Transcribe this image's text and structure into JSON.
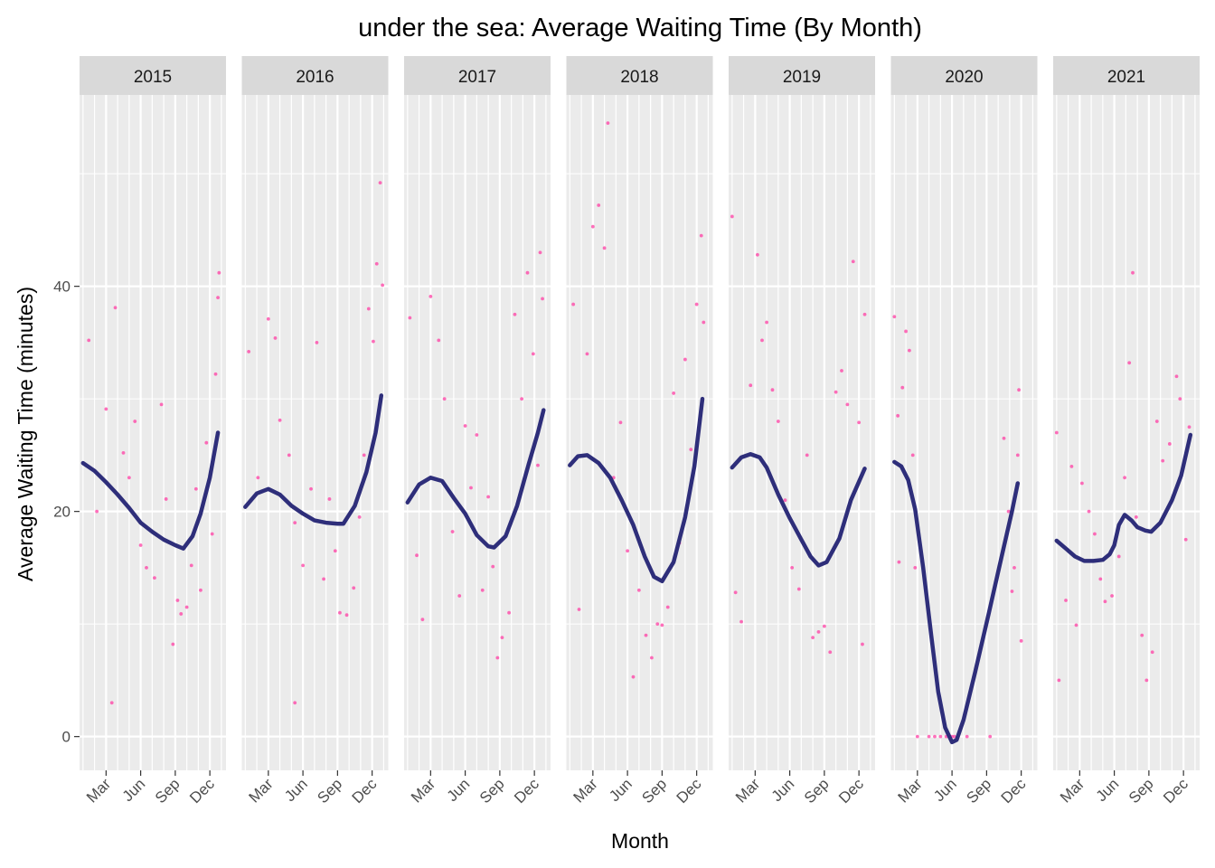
{
  "chart_data": {
    "type": "scatter",
    "title": "under the sea: Average Waiting Time (By Month)",
    "xlabel": "Month",
    "ylabel": "Average Waiting Time (minutes)",
    "ylim": [
      -3,
      57
    ],
    "y_ticks": [
      0,
      20,
      40
    ],
    "x_tick_labels": [
      "Mar",
      "Jun",
      "Sep",
      "Dec"
    ],
    "x_ticks_months": [
      3,
      6,
      9,
      12
    ],
    "xlim_months": [
      0.7,
      13.4
    ],
    "grid": true,
    "facet_by": "year",
    "colors": {
      "points": "#ff3fa4",
      "smooth": "#2e2e7a",
      "panel": "#ebebeb",
      "strip": "#d9d9d9",
      "grid": "#ffffff"
    },
    "panels": [
      {
        "year": "2015",
        "smooth": [
          [
            1.0,
            24.3
          ],
          [
            2.0,
            23.6
          ],
          [
            3.0,
            22.6
          ],
          [
            4.0,
            21.5
          ],
          [
            5.0,
            20.3
          ],
          [
            6.0,
            19.0
          ],
          [
            7.0,
            18.2
          ],
          [
            8.0,
            17.5
          ],
          [
            9.0,
            17.0
          ],
          [
            9.7,
            16.7
          ],
          [
            10.5,
            17.8
          ],
          [
            11.2,
            19.8
          ],
          [
            12.0,
            23.0
          ],
          [
            12.7,
            27.0
          ]
        ],
        "points": [
          [
            1.5,
            35.2
          ],
          [
            2.2,
            20.0
          ],
          [
            3.0,
            29.1
          ],
          [
            3.8,
            38.1
          ],
          [
            4.5,
            25.2
          ],
          [
            5.0,
            23.0
          ],
          [
            5.5,
            28.0
          ],
          [
            6.0,
            17.0
          ],
          [
            6.5,
            15.0
          ],
          [
            7.2,
            14.1
          ],
          [
            7.8,
            29.5
          ],
          [
            8.2,
            21.1
          ],
          [
            8.8,
            8.2
          ],
          [
            9.2,
            12.1
          ],
          [
            9.5,
            10.9
          ],
          [
            10.0,
            11.5
          ],
          [
            10.4,
            15.2
          ],
          [
            10.8,
            22.0
          ],
          [
            11.2,
            13.0
          ],
          [
            11.7,
            26.1
          ],
          [
            12.2,
            18.0
          ],
          [
            12.5,
            32.2
          ],
          [
            12.7,
            39.0
          ],
          [
            12.8,
            41.2
          ],
          [
            3.5,
            3.0
          ]
        ]
      },
      {
        "year": "2016",
        "smooth": [
          [
            1.0,
            20.4
          ],
          [
            2.0,
            21.6
          ],
          [
            3.0,
            22.0
          ],
          [
            4.0,
            21.5
          ],
          [
            5.0,
            20.5
          ],
          [
            6.0,
            19.8
          ],
          [
            7.0,
            19.2
          ],
          [
            8.0,
            19.0
          ],
          [
            9.0,
            18.9
          ],
          [
            9.5,
            18.9
          ],
          [
            10.5,
            20.5
          ],
          [
            11.5,
            23.5
          ],
          [
            12.3,
            27.0
          ],
          [
            12.8,
            30.3
          ]
        ],
        "points": [
          [
            1.3,
            34.2
          ],
          [
            2.1,
            23.0
          ],
          [
            3.0,
            37.1
          ],
          [
            3.6,
            35.4
          ],
          [
            4.0,
            28.1
          ],
          [
            4.8,
            25.0
          ],
          [
            5.3,
            19.0
          ],
          [
            6.0,
            15.2
          ],
          [
            6.7,
            22.0
          ],
          [
            7.2,
            35.0
          ],
          [
            7.8,
            14.0
          ],
          [
            8.3,
            21.1
          ],
          [
            8.8,
            16.5
          ],
          [
            9.2,
            11.0
          ],
          [
            9.8,
            10.8
          ],
          [
            10.4,
            13.2
          ],
          [
            10.9,
            19.5
          ],
          [
            11.3,
            25.0
          ],
          [
            11.7,
            38.0
          ],
          [
            12.1,
            35.1
          ],
          [
            12.4,
            42.0
          ],
          [
            12.7,
            49.2
          ],
          [
            12.9,
            40.1
          ],
          [
            5.3,
            3.0
          ]
        ]
      },
      {
        "year": "2017",
        "smooth": [
          [
            1.0,
            20.8
          ],
          [
            2.0,
            22.4
          ],
          [
            3.0,
            23.0
          ],
          [
            4.0,
            22.7
          ],
          [
            5.0,
            21.2
          ],
          [
            6.0,
            19.8
          ],
          [
            7.0,
            17.9
          ],
          [
            8.0,
            16.9
          ],
          [
            8.5,
            16.8
          ],
          [
            9.5,
            17.8
          ],
          [
            10.5,
            20.5
          ],
          [
            11.5,
            24.2
          ],
          [
            12.3,
            27.0
          ],
          [
            12.8,
            29.0
          ]
        ],
        "points": [
          [
            1.2,
            37.2
          ],
          [
            1.8,
            16.1
          ],
          [
            2.3,
            10.4
          ],
          [
            3.0,
            39.1
          ],
          [
            3.7,
            35.2
          ],
          [
            4.2,
            30.0
          ],
          [
            4.9,
            18.2
          ],
          [
            5.5,
            12.5
          ],
          [
            6.0,
            27.6
          ],
          [
            6.5,
            22.1
          ],
          [
            7.0,
            26.8
          ],
          [
            7.5,
            13.0
          ],
          [
            8.0,
            21.3
          ],
          [
            8.4,
            15.1
          ],
          [
            8.8,
            7.0
          ],
          [
            9.2,
            8.8
          ],
          [
            9.8,
            11.0
          ],
          [
            10.3,
            37.5
          ],
          [
            10.9,
            30.0
          ],
          [
            11.4,
            41.2
          ],
          [
            11.9,
            34.0
          ],
          [
            12.3,
            24.1
          ],
          [
            12.5,
            43.0
          ],
          [
            12.7,
            38.9
          ]
        ]
      },
      {
        "year": "2018",
        "smooth": [
          [
            1.0,
            24.1
          ],
          [
            1.7,
            24.9
          ],
          [
            2.5,
            25.0
          ],
          [
            3.5,
            24.3
          ],
          [
            4.5,
            23.0
          ],
          [
            5.5,
            21.0
          ],
          [
            6.5,
            18.8
          ],
          [
            7.5,
            16.0
          ],
          [
            8.3,
            14.2
          ],
          [
            9.0,
            13.8
          ],
          [
            10.0,
            15.5
          ],
          [
            11.0,
            19.5
          ],
          [
            11.8,
            24.0
          ],
          [
            12.5,
            30.0
          ]
        ],
        "points": [
          [
            1.3,
            38.4
          ],
          [
            1.8,
            11.3
          ],
          [
            2.5,
            34.0
          ],
          [
            3.0,
            45.3
          ],
          [
            3.5,
            47.2
          ],
          [
            4.0,
            43.4
          ],
          [
            4.3,
            54.5
          ],
          [
            4.8,
            23.0
          ],
          [
            5.4,
            27.9
          ],
          [
            6.0,
            16.5
          ],
          [
            6.5,
            5.3
          ],
          [
            7.0,
            13.0
          ],
          [
            7.6,
            9.0
          ],
          [
            8.1,
            7.0
          ],
          [
            8.6,
            10.0
          ],
          [
            9.0,
            9.9
          ],
          [
            9.5,
            11.5
          ],
          [
            10.0,
            30.5
          ],
          [
            10.5,
            17.2
          ],
          [
            11.0,
            33.5
          ],
          [
            11.5,
            25.5
          ],
          [
            12.0,
            38.4
          ],
          [
            12.4,
            44.5
          ],
          [
            12.6,
            36.8
          ]
        ]
      },
      {
        "year": "2019",
        "smooth": [
          [
            1.0,
            23.9
          ],
          [
            1.8,
            24.8
          ],
          [
            2.6,
            25.1
          ],
          [
            3.4,
            24.8
          ],
          [
            4.0,
            23.9
          ],
          [
            5.0,
            21.5
          ],
          [
            6.0,
            19.4
          ],
          [
            7.0,
            17.5
          ],
          [
            7.8,
            16.0
          ],
          [
            8.5,
            15.2
          ],
          [
            9.2,
            15.5
          ],
          [
            10.3,
            17.6
          ],
          [
            11.3,
            21.0
          ],
          [
            12.5,
            23.8
          ]
        ],
        "points": [
          [
            1.0,
            46.2
          ],
          [
            1.3,
            12.8
          ],
          [
            1.8,
            10.2
          ],
          [
            2.6,
            31.2
          ],
          [
            3.2,
            42.8
          ],
          [
            3.6,
            35.2
          ],
          [
            4.0,
            36.8
          ],
          [
            4.5,
            30.8
          ],
          [
            5.0,
            28.0
          ],
          [
            5.6,
            21.0
          ],
          [
            6.2,
            15.0
          ],
          [
            6.8,
            13.1
          ],
          [
            7.5,
            25.0
          ],
          [
            8.0,
            8.8
          ],
          [
            8.5,
            9.3
          ],
          [
            9.0,
            9.8
          ],
          [
            9.5,
            7.5
          ],
          [
            10.0,
            30.6
          ],
          [
            10.5,
            32.5
          ],
          [
            11.0,
            29.5
          ],
          [
            11.5,
            42.2
          ],
          [
            12.0,
            27.9
          ],
          [
            12.5,
            37.5
          ],
          [
            12.3,
            8.2
          ]
        ]
      },
      {
        "year": "2020",
        "smooth": [
          [
            1.0,
            24.4
          ],
          [
            1.6,
            24.0
          ],
          [
            2.2,
            22.8
          ],
          [
            2.8,
            20.2
          ],
          [
            3.5,
            15.0
          ],
          [
            4.2,
            9.0
          ],
          [
            4.8,
            4.0
          ],
          [
            5.4,
            0.8
          ],
          [
            6.0,
            -0.5
          ],
          [
            6.4,
            -0.3
          ],
          [
            7.0,
            1.5
          ],
          [
            8.0,
            5.7
          ],
          [
            9.2,
            11.0
          ],
          [
            10.3,
            16.0
          ],
          [
            11.2,
            20.0
          ],
          [
            11.7,
            22.5
          ]
        ],
        "points": [
          [
            1.0,
            37.3
          ],
          [
            1.3,
            28.5
          ],
          [
            1.7,
            31.0
          ],
          [
            2.0,
            36.0
          ],
          [
            2.3,
            34.3
          ],
          [
            2.6,
            25.0
          ],
          [
            2.8,
            15.0
          ],
          [
            1.4,
            15.5
          ],
          [
            3.0,
            0.0
          ],
          [
            4.0,
            0.0
          ],
          [
            4.5,
            0.0
          ],
          [
            5.0,
            0.0
          ],
          [
            5.5,
            0.0
          ],
          [
            6.0,
            0.0
          ],
          [
            6.2,
            0.0
          ],
          [
            6.5,
            0.0
          ],
          [
            7.3,
            0.0
          ],
          [
            9.3,
            0.0
          ],
          [
            10.5,
            26.5
          ],
          [
            10.9,
            20.0
          ],
          [
            11.2,
            12.9
          ],
          [
            11.4,
            15.0
          ],
          [
            11.7,
            25.0
          ],
          [
            11.8,
            30.8
          ],
          [
            12.0,
            8.5
          ]
        ]
      },
      {
        "year": "2021",
        "smooth": [
          [
            1.0,
            17.4
          ],
          [
            1.8,
            16.7
          ],
          [
            2.6,
            16.0
          ],
          [
            3.4,
            15.6
          ],
          [
            4.2,
            15.6
          ],
          [
            5.0,
            15.7
          ],
          [
            5.6,
            16.2
          ],
          [
            6.0,
            17.0
          ],
          [
            6.4,
            18.8
          ],
          [
            6.9,
            19.7
          ],
          [
            7.5,
            19.2
          ],
          [
            8.0,
            18.6
          ],
          [
            8.7,
            18.3
          ],
          [
            9.2,
            18.2
          ],
          [
            10.0,
            19.0
          ],
          [
            11.0,
            21.0
          ],
          [
            11.8,
            23.2
          ],
          [
            12.6,
            26.8
          ]
        ],
        "points": [
          [
            1.0,
            27.0
          ],
          [
            1.2,
            5.0
          ],
          [
            1.8,
            12.1
          ],
          [
            2.3,
            24.0
          ],
          [
            2.7,
            9.9
          ],
          [
            3.2,
            22.5
          ],
          [
            3.8,
            20.0
          ],
          [
            4.3,
            18.0
          ],
          [
            4.8,
            14.0
          ],
          [
            5.2,
            12.0
          ],
          [
            5.8,
            12.5
          ],
          [
            6.4,
            16.0
          ],
          [
            6.9,
            23.0
          ],
          [
            7.3,
            33.2
          ],
          [
            7.6,
            41.2
          ],
          [
            7.9,
            19.5
          ],
          [
            8.4,
            9.0
          ],
          [
            8.8,
            5.0
          ],
          [
            9.3,
            7.5
          ],
          [
            9.7,
            28.0
          ],
          [
            10.2,
            24.5
          ],
          [
            10.8,
            26.0
          ],
          [
            11.4,
            32.0
          ],
          [
            11.7,
            30.0
          ],
          [
            12.2,
            17.5
          ],
          [
            12.5,
            27.5
          ]
        ]
      }
    ]
  }
}
